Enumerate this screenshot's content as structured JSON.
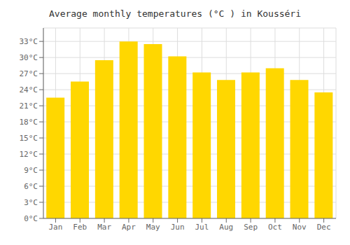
{
  "chart_data": {
    "type": "bar",
    "title": "Average monthly temperatures (°C ) in Kousséri",
    "categories": [
      "Jan",
      "Feb",
      "Mar",
      "Apr",
      "May",
      "Jun",
      "Jul",
      "Aug",
      "Sep",
      "Oct",
      "Nov",
      "Dec"
    ],
    "values": [
      22.5,
      25.5,
      29.5,
      33.0,
      32.5,
      30.2,
      27.2,
      25.8,
      27.2,
      28.0,
      25.8,
      23.5
    ],
    "color": "#FFD700",
    "ylim": [
      0,
      35.5
    ],
    "yticks": [
      {
        "value": 0,
        "label": "0°C"
      },
      {
        "value": 3,
        "label": "3°C"
      },
      {
        "value": 6,
        "label": "6°C"
      },
      {
        "value": 9,
        "label": "9°C"
      },
      {
        "value": 12,
        "label": "12°C"
      },
      {
        "value": 15,
        "label": "15°C"
      },
      {
        "value": 18,
        "label": "18°C"
      },
      {
        "value": 21,
        "label": "21°C"
      },
      {
        "value": 24,
        "label": "24°C"
      },
      {
        "value": 27,
        "label": "27°C"
      },
      {
        "value": 30,
        "label": "30°C"
      },
      {
        "value": 33,
        "label": "33°C"
      }
    ],
    "grid": true
  }
}
